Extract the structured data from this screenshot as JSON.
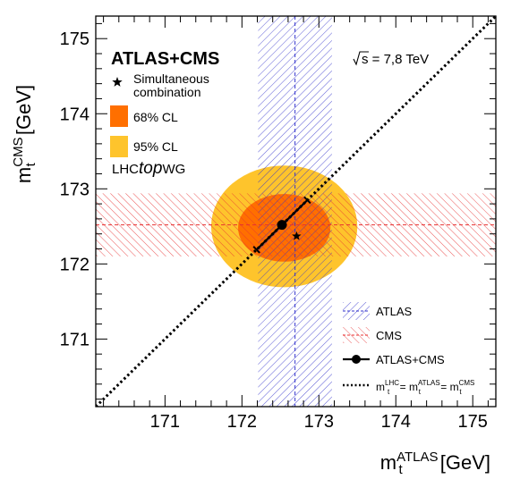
{
  "chart_data": {
    "type": "scatter",
    "xlabel": {
      "base": "m",
      "sub": "t",
      "sup": "ATLAS",
      "unit": "[GeV]"
    },
    "ylabel": {
      "base": "m",
      "sub": "t",
      "sup": "CMS",
      "unit": "[GeV]"
    },
    "xlim": [
      170.1,
      175.3
    ],
    "ylim": [
      170.1,
      175.3
    ],
    "xticks": [
      "171",
      "172",
      "173",
      "174",
      "175"
    ],
    "yticks": [
      "171",
      "172",
      "173",
      "174",
      "175"
    ],
    "grid": false,
    "panel_title": "ATLAS+CMS",
    "energy_label": {
      "sqrt": "s",
      "text": " = 7,8 TeV"
    },
    "lhc_label": {
      "pre": "LHC",
      "ital": "top",
      "post": "WG"
    },
    "atlas_measurement": {
      "value": 172.69,
      "band": [
        172.21,
        173.17
      ]
    },
    "cms_measurement": {
      "value": 172.52,
      "band": [
        172.1,
        172.94
      ]
    },
    "combination": {
      "x": 172.52,
      "y": 172.52,
      "err": 0.33
    },
    "simultaneous": {
      "x": 172.71,
      "y": 172.37
    },
    "ellipses": [
      {
        "name": "95% CL",
        "cx": 172.55,
        "cy": 172.5,
        "rx": 0.95,
        "ry": 0.81,
        "color": "#fec42c"
      },
      {
        "name": "68% CL",
        "cx": 172.55,
        "cy": 172.48,
        "rx": 0.6,
        "ry": 0.45,
        "color": "#ff6f00"
      }
    ],
    "legend_top": [
      {
        "kind": "star",
        "label1": "Simultaneous",
        "label2": "combination"
      },
      {
        "kind": "box68",
        "label": "68% CL"
      },
      {
        "kind": "box95",
        "label": "95% CL"
      }
    ],
    "legend_bottom": [
      {
        "kind": "atlas",
        "label": "ATLAS"
      },
      {
        "kind": "cms",
        "label": "CMS"
      },
      {
        "kind": "comb",
        "label": "ATLAS+CMS"
      },
      {
        "kind": "diag",
        "label": {
          "base": "m",
          "sub": "t",
          "sup1": "LHC",
          "eq": " = ",
          "sup2": "ATLAS",
          "sup3": "CMS"
        }
      }
    ],
    "colors": {
      "atlas": "#3333cc",
      "cms": "#e83030",
      "cl68": "#ff6f00",
      "cl95": "#fec42c",
      "line": "#000000"
    }
  }
}
